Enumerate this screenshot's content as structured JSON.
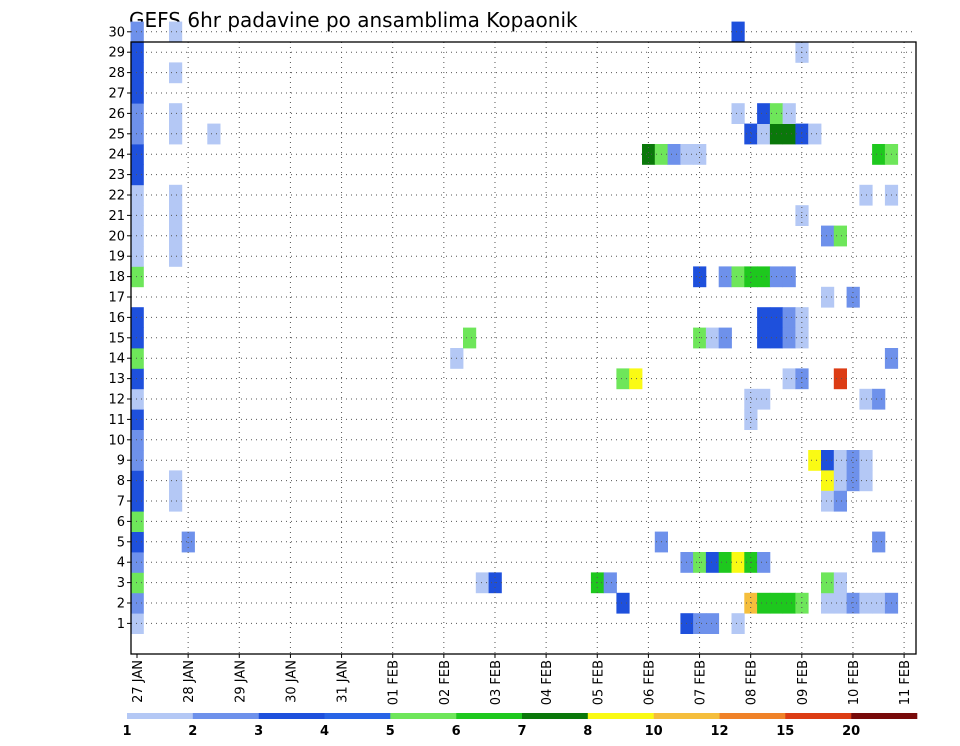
{
  "chart_data": {
    "type": "heatmap",
    "title": "GEFS 6hr padavine po ansamblima Kopaonik",
    "y_tick_labels": [
      "1",
      "2",
      "3",
      "4",
      "5",
      "6",
      "7",
      "8",
      "9",
      "10",
      "11",
      "12",
      "13",
      "14",
      "15",
      "16",
      "17",
      "18",
      "19",
      "20",
      "21",
      "22",
      "23",
      "24",
      "25",
      "26",
      "27",
      "28",
      "29",
      "30"
    ],
    "x_tick_labels": [
      "27 JAN",
      "28 JAN",
      "29 JAN",
      "30 JAN",
      "31 JAN",
      "01 FEB",
      "02 FEB",
      "03 FEB",
      "04 FEB",
      "05 FEB",
      "06 FEB",
      "07 FEB",
      "08 FEB",
      "09 FEB",
      "10 FEB",
      "11 FEB"
    ],
    "time_step_hours": 6,
    "grid": true,
    "colorbar": {
      "position": "bottom",
      "labels": [
        "1",
        "2",
        "3",
        "4",
        "5",
        "6",
        "7",
        "8",
        "10",
        "12",
        "15",
        "20"
      ],
      "colors": [
        "#b4c8f5",
        "#6e91eb",
        "#1e50dc",
        "#2864e6",
        "#6ee65a",
        "#1ec81e",
        "#0a780a",
        "#fafa14",
        "#f5be3c",
        "#f08228",
        "#dc3c14",
        "#780a0a"
      ]
    },
    "cells": [
      {
        "member": 1,
        "t": 0,
        "level": 1
      },
      {
        "member": 2,
        "t": 0,
        "level": 2
      },
      {
        "member": 3,
        "t": 0,
        "level": 5
      },
      {
        "member": 4,
        "t": 0,
        "level": 2
      },
      {
        "member": 5,
        "t": 0,
        "level": 3
      },
      {
        "member": 6,
        "t": 0,
        "level": 5
      },
      {
        "member": 7,
        "t": 0,
        "level": 3
      },
      {
        "member": 8,
        "t": 0,
        "level": 3
      },
      {
        "member": 9,
        "t": 0,
        "level": 2
      },
      {
        "member": 10,
        "t": 0,
        "level": 2
      },
      {
        "member": 11,
        "t": 0,
        "level": 3
      },
      {
        "member": 12,
        "t": 0,
        "level": 1
      },
      {
        "member": 13,
        "t": 0,
        "level": 3
      },
      {
        "member": 14,
        "t": 0,
        "level": 5
      },
      {
        "member": 15,
        "t": 0,
        "level": 3
      },
      {
        "member": 16,
        "t": 0,
        "level": 3
      },
      {
        "member": 18,
        "t": 0,
        "level": 5
      },
      {
        "member": 19,
        "t": 0,
        "level": 1
      },
      {
        "member": 20,
        "t": 0,
        "level": 1
      },
      {
        "member": 21,
        "t": 0,
        "level": 1
      },
      {
        "member": 22,
        "t": 0,
        "level": 1
      },
      {
        "member": 23,
        "t": 0,
        "level": 3
      },
      {
        "member": 24,
        "t": 0,
        "level": 3
      },
      {
        "member": 25,
        "t": 0,
        "level": 2
      },
      {
        "member": 26,
        "t": 0,
        "level": 2
      },
      {
        "member": 27,
        "t": 0,
        "level": 3
      },
      {
        "member": 28,
        "t": 0,
        "level": 3
      },
      {
        "member": 29,
        "t": 0,
        "level": 3
      },
      {
        "member": 30,
        "t": 0,
        "level": 2
      },
      {
        "member": 30,
        "t": 3,
        "level": 1
      },
      {
        "member": 28,
        "t": 3,
        "level": 1
      },
      {
        "member": 26,
        "t": 3,
        "level": 1
      },
      {
        "member": 25,
        "t": 3,
        "level": 1
      },
      {
        "member": 22,
        "t": 3,
        "level": 1
      },
      {
        "member": 21,
        "t": 3,
        "level": 1
      },
      {
        "member": 20,
        "t": 3,
        "level": 1
      },
      {
        "member": 19,
        "t": 3,
        "level": 1
      },
      {
        "member": 8,
        "t": 3,
        "level": 1
      },
      {
        "member": 7,
        "t": 3,
        "level": 1
      },
      {
        "member": 5,
        "t": 4,
        "level": 2
      },
      {
        "member": 25,
        "t": 6,
        "level": 1
      },
      {
        "member": 14,
        "t": 25,
        "level": 1
      },
      {
        "member": 15,
        "t": 26,
        "level": 5
      },
      {
        "member": 3,
        "t": 27,
        "level": 1
      },
      {
        "member": 3,
        "t": 28,
        "level": 3
      },
      {
        "member": 3,
        "t": 36,
        "level": 6
      },
      {
        "member": 3,
        "t": 37,
        "level": 2
      },
      {
        "member": 2,
        "t": 38,
        "level": 3
      },
      {
        "member": 13,
        "t": 38,
        "level": 5
      },
      {
        "member": 13,
        "t": 39,
        "level": 8
      },
      {
        "member": 24,
        "t": 40,
        "level": 7
      },
      {
        "member": 24,
        "t": 41,
        "level": 5
      },
      {
        "member": 24,
        "t": 42,
        "level": 2
      },
      {
        "member": 24,
        "t": 43,
        "level": 1
      },
      {
        "member": 24,
        "t": 44,
        "level": 1
      },
      {
        "member": 5,
        "t": 41,
        "level": 2
      },
      {
        "member": 1,
        "t": 43,
        "level": 3
      },
      {
        "member": 1,
        "t": 44,
        "level": 2
      },
      {
        "member": 1,
        "t": 45,
        "level": 2
      },
      {
        "member": 1,
        "t": 47,
        "level": 1
      },
      {
        "member": 4,
        "t": 43,
        "level": 2
      },
      {
        "member": 4,
        "t": 44,
        "level": 5
      },
      {
        "member": 4,
        "t": 45,
        "level": 3
      },
      {
        "member": 4,
        "t": 46,
        "level": 6
      },
      {
        "member": 4,
        "t": 47,
        "level": 8
      },
      {
        "member": 4,
        "t": 48,
        "level": 6
      },
      {
        "member": 4,
        "t": 49,
        "level": 2
      },
      {
        "member": 15,
        "t": 44,
        "level": 5
      },
      {
        "member": 15,
        "t": 45,
        "level": 1
      },
      {
        "member": 15,
        "t": 46,
        "level": 2
      },
      {
        "member": 18,
        "t": 44,
        "level": 3
      },
      {
        "member": 18,
        "t": 46,
        "level": 2
      },
      {
        "member": 18,
        "t": 47,
        "level": 5
      },
      {
        "member": 18,
        "t": 48,
        "level": 6
      },
      {
        "member": 18,
        "t": 49,
        "level": 6
      },
      {
        "member": 18,
        "t": 50,
        "level": 2
      },
      {
        "member": 18,
        "t": 51,
        "level": 2
      },
      {
        "member": 30,
        "t": 47,
        "level": 3
      },
      {
        "member": 26,
        "t": 47,
        "level": 1
      },
      {
        "member": 2,
        "t": 48,
        "level": 9
      },
      {
        "member": 2,
        "t": 49,
        "level": 6
      },
      {
        "member": 2,
        "t": 50,
        "level": 6
      },
      {
        "member": 2,
        "t": 51,
        "level": 6
      },
      {
        "member": 2,
        "t": 52,
        "level": 5
      },
      {
        "member": 2,
        "t": 54,
        "level": 1
      },
      {
        "member": 2,
        "t": 55,
        "level": 1
      },
      {
        "member": 2,
        "t": 56,
        "level": 2
      },
      {
        "member": 2,
        "t": 57,
        "level": 1
      },
      {
        "member": 2,
        "t": 58,
        "level": 1
      },
      {
        "member": 2,
        "t": 59,
        "level": 2
      },
      {
        "member": 12,
        "t": 48,
        "level": 1
      },
      {
        "member": 12,
        "t": 49,
        "level": 1
      },
      {
        "member": 11,
        "t": 48,
        "level": 1
      },
      {
        "member": 25,
        "t": 48,
        "level": 3
      },
      {
        "member": 25,
        "t": 49,
        "level": 1
      },
      {
        "member": 25,
        "t": 50,
        "level": 7
      },
      {
        "member": 25,
        "t": 51,
        "level": 7
      },
      {
        "member": 25,
        "t": 52,
        "level": 3
      },
      {
        "member": 25,
        "t": 53,
        "level": 1
      },
      {
        "member": 26,
        "t": 49,
        "level": 3
      },
      {
        "member": 26,
        "t": 50,
        "level": 5
      },
      {
        "member": 26,
        "t": 51,
        "level": 1
      },
      {
        "member": 16,
        "t": 49,
        "level": 3
      },
      {
        "member": 16,
        "t": 50,
        "level": 3
      },
      {
        "member": 16,
        "t": 51,
        "level": 2
      },
      {
        "member": 16,
        "t": 52,
        "level": 1
      },
      {
        "member": 15,
        "t": 49,
        "level": 3
      },
      {
        "member": 15,
        "t": 50,
        "level": 3
      },
      {
        "member": 15,
        "t": 51,
        "level": 2
      },
      {
        "member": 15,
        "t": 52,
        "level": 1
      },
      {
        "member": 13,
        "t": 51,
        "level": 1
      },
      {
        "member": 13,
        "t": 52,
        "level": 2
      },
      {
        "member": 13,
        "t": 55,
        "level": 11
      },
      {
        "member": 29,
        "t": 52,
        "level": 1
      },
      {
        "member": 21,
        "t": 52,
        "level": 1
      },
      {
        "member": 9,
        "t": 53,
        "level": 8
      },
      {
        "member": 9,
        "t": 54,
        "level": 3
      },
      {
        "member": 9,
        "t": 55,
        "level": 1
      },
      {
        "member": 9,
        "t": 56,
        "level": 2
      },
      {
        "member": 9,
        "t": 57,
        "level": 1
      },
      {
        "member": 8,
        "t": 54,
        "level": 8
      },
      {
        "member": 8,
        "t": 55,
        "level": 1
      },
      {
        "member": 8,
        "t": 56,
        "level": 2
      },
      {
        "member": 8,
        "t": 57,
        "level": 1
      },
      {
        "member": 3,
        "t": 54,
        "level": 5
      },
      {
        "member": 3,
        "t": 55,
        "level": 1
      },
      {
        "member": 7,
        "t": 54,
        "level": 1
      },
      {
        "member": 7,
        "t": 55,
        "level": 2
      },
      {
        "member": 20,
        "t": 54,
        "level": 2
      },
      {
        "member": 20,
        "t": 55,
        "level": 5
      },
      {
        "member": 17,
        "t": 54,
        "level": 1
      },
      {
        "member": 17,
        "t": 56,
        "level": 2
      },
      {
        "member": 12,
        "t": 57,
        "level": 1
      },
      {
        "member": 12,
        "t": 58,
        "level": 2
      },
      {
        "member": 22,
        "t": 57,
        "level": 1
      },
      {
        "member": 22,
        "t": 59,
        "level": 1
      },
      {
        "member": 24,
        "t": 58,
        "level": 6
      },
      {
        "member": 24,
        "t": 59,
        "level": 5
      },
      {
        "member": 5,
        "t": 58,
        "level": 2
      },
      {
        "member": 14,
        "t": 59,
        "level": 2
      }
    ]
  }
}
